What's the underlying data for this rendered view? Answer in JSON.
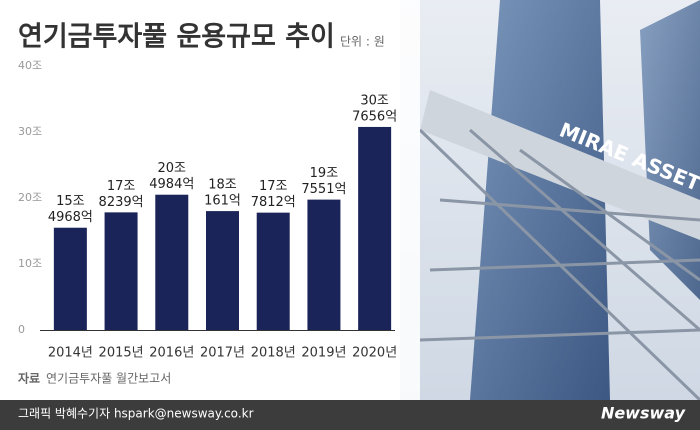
{
  "chart_data": {
    "type": "bar",
    "title": "연기금투자풀 운용규모 추이",
    "unit_note": "단위 : 원",
    "categories": [
      "2014년",
      "2015년",
      "2016년",
      "2017년",
      "2018년",
      "2019년",
      "2020년"
    ],
    "values": [
      15.4968,
      17.8239,
      20.4984,
      18.0161,
      17.7812,
      19.7551,
      30.7656
    ],
    "value_labels": [
      [
        "15조",
        "4968억"
      ],
      [
        "17조",
        "8239억"
      ],
      [
        "20조",
        "4984억"
      ],
      [
        "18조",
        "161억"
      ],
      [
        "17조",
        "7812억"
      ],
      [
        "19조",
        "7551억"
      ],
      [
        "30조",
        "7656억"
      ]
    ],
    "color": "#1b2458",
    "ylim": [
      0,
      40
    ],
    "yticks": [
      0,
      {
        "value": 10,
        "label": "10조"
      },
      {
        "value": 20,
        "label": "20조"
      },
      {
        "value": 30,
        "label": "30조"
      },
      {
        "value": 40,
        "label": "40조"
      }
    ],
    "grid": false,
    "source": [
      "자료",
      "연기금투자풀 월간보고서"
    ]
  },
  "footer": {
    "credit": "그래픽 박혜수기자 hspark@newsway.co.kr",
    "brand": "Newsway"
  }
}
